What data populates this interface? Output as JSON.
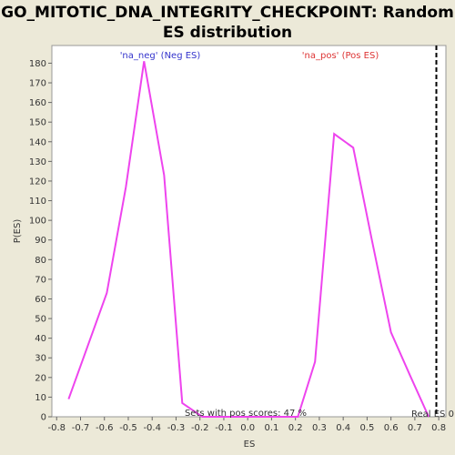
{
  "chart_data": {
    "type": "line",
    "title": [
      "GO_MITOTIC_DNA_INTEGRITY_CHECKPOINT: Random",
      "ES distribution"
    ],
    "x_label": "ES",
    "y_label": "P(ES)",
    "x": [
      -0.75,
      -0.59,
      -0.51,
      -0.434,
      -0.35,
      -0.274,
      -0.19,
      0.21,
      0.282,
      0.362,
      0.442,
      0.52,
      0.6,
      0.68,
      0.758
    ],
    "series": [
      {
        "name": null,
        "color": "#ee44ee",
        "values": [
          9,
          63,
          117,
          181,
          123,
          7,
          0,
          0,
          28,
          144,
          137,
          90,
          43,
          21,
          0
        ]
      }
    ],
    "xlim": [
      -0.82,
      0.83
    ],
    "ylim": [
      0,
      189
    ],
    "xticks": [
      -0.8,
      -0.7,
      -0.6,
      -0.5,
      -0.4,
      -0.3,
      -0.2,
      -0.1,
      {
        "value": 0,
        "label": "0.0"
      },
      0.1,
      0.2,
      0.3,
      0.4,
      0.5,
      0.6,
      0.7,
      0.8
    ],
    "yticks": [
      0,
      10,
      20,
      30,
      40,
      50,
      60,
      70,
      80,
      90,
      100,
      110,
      120,
      130,
      140,
      150,
      160,
      170,
      180
    ],
    "annotations": [
      {
        "text": "'na_neg' (Neg ES)",
        "color": "#3333cc"
      },
      {
        "text": "'na_pos' (Pos ES)",
        "color": "#dd3333"
      },
      {
        "text": "Sets with pos scores: 47 %",
        "color": "#333333"
      }
    ],
    "real_es": {
      "value": 0.79,
      "label": "Real ES 0"
    }
  }
}
